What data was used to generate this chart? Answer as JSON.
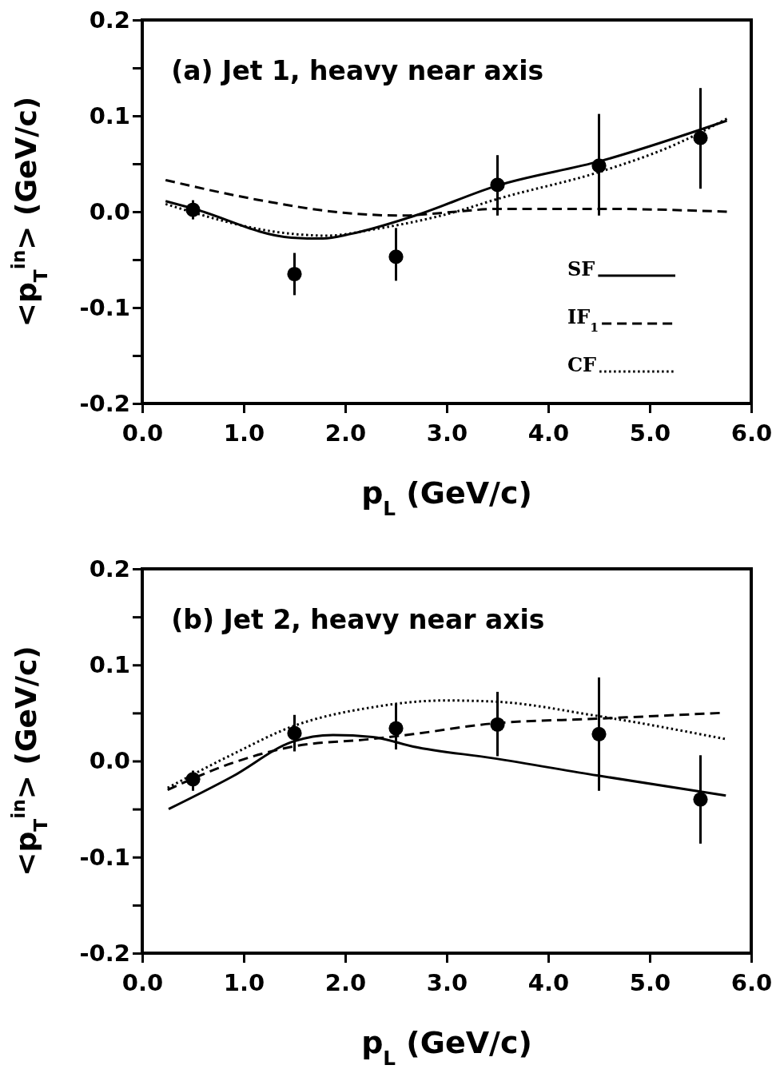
{
  "chart_data": [
    {
      "type": "line",
      "title": "(a) Jet 1, heavy near axis",
      "xlabel": "p$_{L}$ (GeV/c)",
      "ylabel": "<p$_{T}$$^{in}$> (GeV/c)",
      "xlim": [
        0,
        6
      ],
      "ylim": [
        -0.2,
        0.2
      ],
      "xticks": [
        {
          "value": 0,
          "label": "0.0"
        },
        {
          "value": 1,
          "label": "1.0"
        },
        {
          "value": 2,
          "label": "2.0"
        },
        {
          "value": 3,
          "label": "3.0"
        },
        {
          "value": 4,
          "label": "4.0"
        },
        {
          "value": 5,
          "label": "5.0"
        },
        {
          "value": 6,
          "label": "6.0"
        }
      ],
      "yticks": [
        -0.2,
        {
          "value": -0.15,
          "label": null
        },
        -0.1,
        {
          "value": -0.05,
          "label": null
        },
        {
          "value": 0,
          "label": "0.0"
        },
        {
          "value": 0.05,
          "label": null
        },
        0.1,
        {
          "value": 0.15,
          "label": null
        },
        0.2
      ],
      "grid": false,
      "legend": "bottom right",
      "series": [
        {
          "type": "scatter",
          "color": "#000000",
          "marker": "circle",
          "x": [
            0.5,
            1.5,
            2.5,
            3.5,
            4.5,
            5.5
          ],
          "values": [
            0.002,
            -0.065,
            -0.047,
            0.028,
            0.048,
            0.077
          ],
          "errors": [
            [
              -0.008,
              0.012
            ],
            [
              -0.087,
              -0.043
            ],
            [
              -0.072,
              -0.017
            ],
            [
              -0.004,
              0.059
            ],
            [
              -0.004,
              0.102
            ],
            [
              0.024,
              0.129
            ]
          ]
        },
        {
          "type": "line",
          "name": "SF",
          "color": "#000000",
          "line_style": "solid",
          "x": [
            0.23,
            0.48,
            1.47,
            1.78,
            2.06,
            2.69,
            3.49,
            4.52,
            5.76
          ],
          "values": [
            0.011,
            0.004,
            -0.027,
            -0.028,
            -0.023,
            -0.004,
            0.027,
            0.053,
            0.095
          ]
        },
        {
          "type": "line",
          "name": "IF$_{1}$",
          "color": "#000000",
          "line_style": "dashed",
          "x": [
            0.23,
            1.11,
            1.98,
            2.54,
            3.09,
            3.49,
            4.52,
            5.76
          ],
          "values": [
            0.033,
            0.013,
            -0.001,
            -0.004,
            0.0,
            0.003,
            0.003,
            0.0
          ]
        },
        {
          "type": "line",
          "name": "CF",
          "color": "#000000",
          "line_style": "dotted",
          "x": [
            0.23,
            1.47,
            1.82,
            2.3,
            3.09,
            3.49,
            4.52,
            5.27,
            5.76
          ],
          "values": [
            0.008,
            -0.023,
            -0.025,
            -0.018,
            0.0,
            0.013,
            0.042,
            0.071,
            0.097
          ]
        }
      ]
    },
    {
      "type": "line",
      "title": "(b) Jet 2, heavy near axis",
      "xlabel": "p$_{L}$ (GeV/c)",
      "ylabel": "<p$_{T}$$^{in}$> (GeV/c)",
      "xlim": [
        0,
        6
      ],
      "ylim": [
        -0.2,
        0.2
      ],
      "xticks": [
        {
          "value": 0,
          "label": "0.0"
        },
        {
          "value": 1,
          "label": "1.0"
        },
        {
          "value": 2,
          "label": "2.0"
        },
        {
          "value": 3,
          "label": "3.0"
        },
        {
          "value": 4,
          "label": "4.0"
        },
        {
          "value": 5,
          "label": "5.0"
        },
        {
          "value": 6,
          "label": "6.0"
        }
      ],
      "yticks": [
        -0.2,
        {
          "value": -0.15,
          "label": null
        },
        -0.1,
        {
          "value": -0.05,
          "label": null
        },
        {
          "value": 0,
          "label": "0.0"
        },
        {
          "value": 0.05,
          "label": null
        },
        0.1,
        {
          "value": 0.15,
          "label": null
        },
        0.2
      ],
      "grid": false,
      "series": [
        {
          "type": "scatter",
          "color": "#000000",
          "marker": "circle",
          "x": [
            0.5,
            1.5,
            2.5,
            3.5,
            4.5,
            5.5
          ],
          "values": [
            -0.019,
            0.029,
            0.034,
            0.038,
            0.028,
            -0.04
          ],
          "errors": [
            [
              -0.031,
              -0.01
            ],
            [
              0.01,
              0.048
            ],
            [
              0.012,
              0.06
            ],
            [
              0.005,
              0.072
            ],
            [
              -0.031,
              0.087
            ],
            [
              -0.086,
              0.006
            ]
          ]
        },
        {
          "type": "line",
          "color": "#000000",
          "line_style": "solid",
          "x": [
            0.26,
            0.89,
            1.48,
            1.88,
            2.27,
            2.67,
            3.45,
            4.48,
            5.75
          ],
          "values": [
            -0.05,
            -0.016,
            0.02,
            0.027,
            0.025,
            0.015,
            0.003,
            -0.015,
            -0.036
          ]
        },
        {
          "type": "line",
          "color": "#000000",
          "line_style": "dashed",
          "x": [
            0.25,
            0.89,
            1.48,
            2.27,
            2.67,
            3.45,
            4.48,
            5.69
          ],
          "values": [
            -0.03,
            -0.002,
            0.015,
            0.023,
            0.028,
            0.039,
            0.044,
            0.05
          ]
        },
        {
          "type": "line",
          "color": "#000000",
          "line_style": "dotted",
          "x": [
            0.25,
            0.89,
            1.48,
            2.27,
            2.98,
            3.45,
            4.48,
            5.74
          ],
          "values": [
            -0.028,
            0.007,
            0.036,
            0.056,
            0.063,
            0.062,
            0.047,
            0.023
          ]
        }
      ]
    }
  ]
}
